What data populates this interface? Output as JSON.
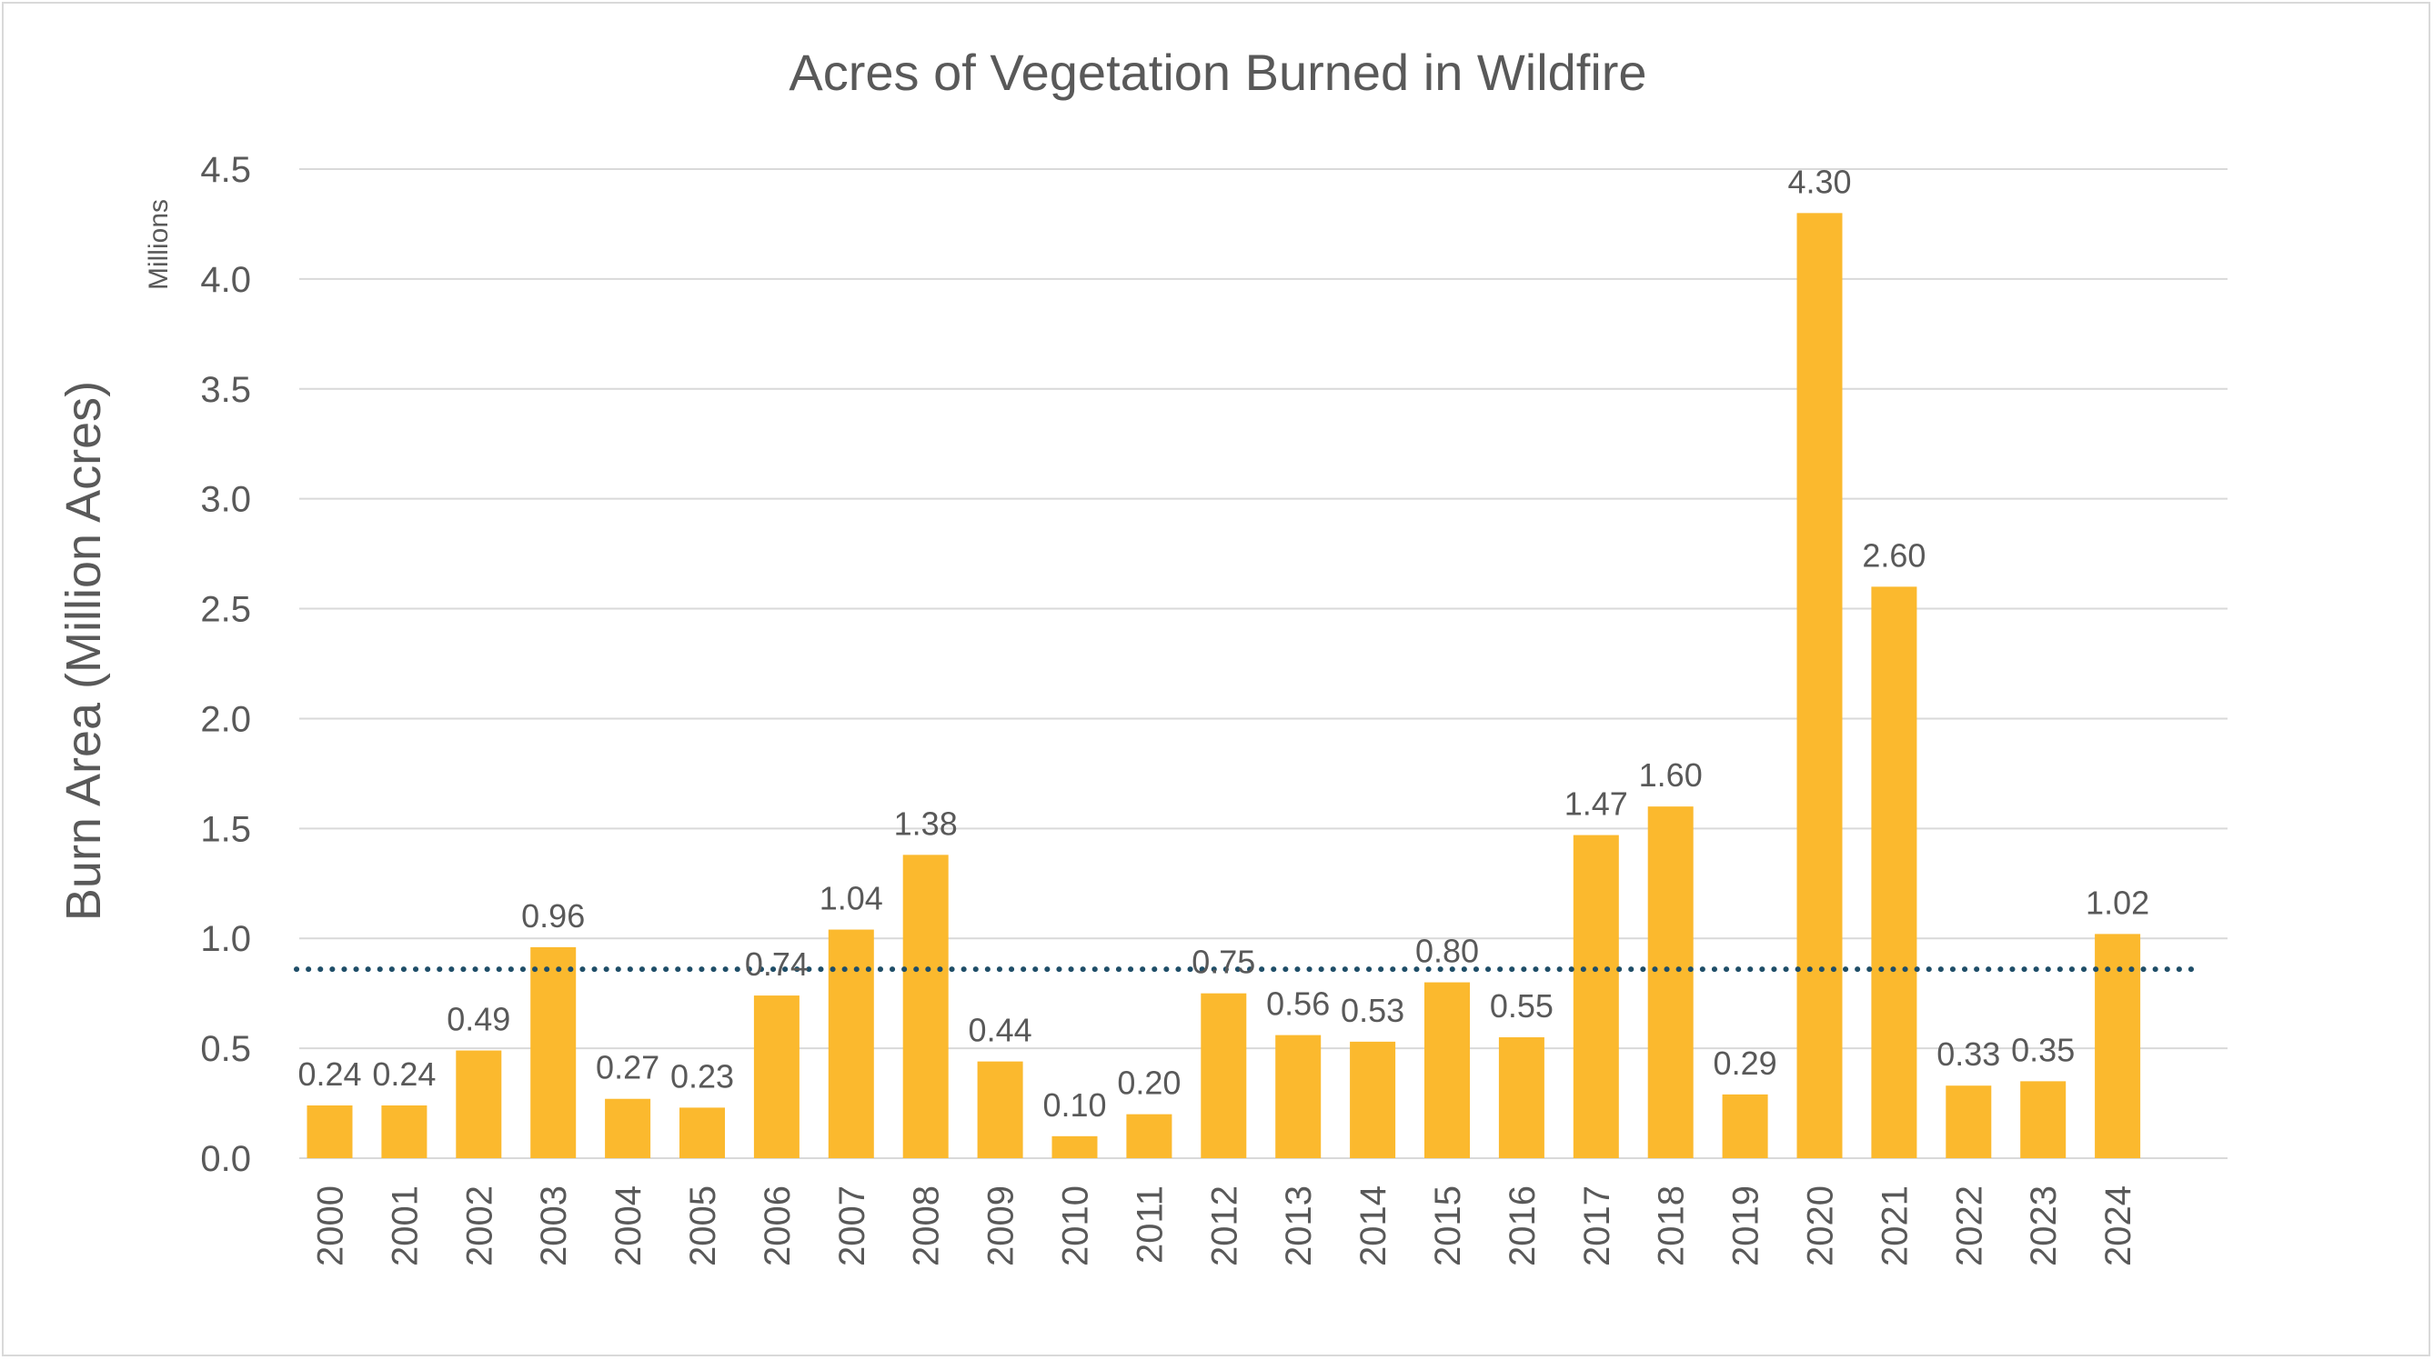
{
  "chart_data": {
    "type": "bar",
    "title": "Acres of Vegetation Burned in Wildfire",
    "ylabel": "Burn Area (Million Acres)",
    "y_unit_label": "Millions",
    "xlabel": "",
    "ylim": [
      0,
      4.5
    ],
    "y_ticks": [
      "0.0",
      "0.5",
      "1.0",
      "1.5",
      "2.0",
      "2.5",
      "3.0",
      "3.5",
      "4.0",
      "4.5"
    ],
    "categories": [
      "2000",
      "2001",
      "2002",
      "2003",
      "2004",
      "2005",
      "2006",
      "2007",
      "2008",
      "2009",
      "2010",
      "2011",
      "2012",
      "2013",
      "2014",
      "2015",
      "2016",
      "2017",
      "2018",
      "2019",
      "2020",
      "2021",
      "2022",
      "2023",
      "2024"
    ],
    "values": [
      0.24,
      0.24,
      0.49,
      0.96,
      0.27,
      0.23,
      0.74,
      1.04,
      1.38,
      0.44,
      0.1,
      0.2,
      0.75,
      0.56,
      0.53,
      0.8,
      0.55,
      1.47,
      1.6,
      0.29,
      4.3,
      2.6,
      0.33,
      0.35,
      1.02
    ],
    "value_labels": [
      "0.24",
      "0.24",
      "0.49",
      "0.96",
      "0.27",
      "0.23",
      "0.74",
      "1.04",
      "1.38",
      "0.44",
      "0.10",
      "0.20",
      "0.75",
      "0.56",
      "0.53",
      "0.80",
      "0.55",
      "1.47",
      "1.60",
      "0.29",
      "4.30",
      "2.60",
      "0.33",
      "0.35",
      "1.02"
    ],
    "reference_line": {
      "value": 0.86,
      "style": "dotted"
    },
    "grid": true,
    "legend": "none",
    "colors": {
      "bar": "#FBB92E",
      "reference_line": "#1F4E68",
      "grid": "#d9d9d9",
      "text": "#595959"
    }
  }
}
